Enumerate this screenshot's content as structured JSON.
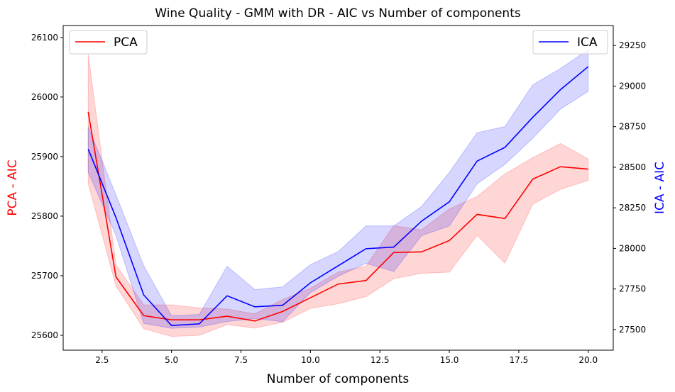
{
  "chart_data": {
    "type": "line",
    "title": "Wine Quality - GMM with DR - AIC vs Number of components",
    "xlabel": "Number of components",
    "ylabel_left": "PCA - AIC",
    "ylabel_right": "ICA - AIC",
    "xlim": [
      1.1,
      20.9
    ],
    "xticks": [
      2.5,
      5.0,
      7.5,
      10.0,
      12.5,
      15.0,
      17.5,
      20.0
    ],
    "xtick_labels": [
      "2.5",
      "5.0",
      "7.5",
      "10.0",
      "12.5",
      "15.0",
      "17.5",
      "20.0"
    ],
    "ylim_left": [
      25575,
      26120
    ],
    "yticks_left": [
      25600,
      25700,
      25800,
      25900,
      26000,
      26100
    ],
    "ytick_labels_left": [
      "25600",
      "25700",
      "25800",
      "25900",
      "26000",
      "26100"
    ],
    "ylim_right": [
      27373,
      29373
    ],
    "yticks_right": [
      27500,
      27750,
      28000,
      28250,
      28500,
      28750,
      29000,
      29250
    ],
    "ytick_labels_right": [
      "27500",
      "27750",
      "28000",
      "28250",
      "28500",
      "28750",
      "29000",
      "29250"
    ],
    "grid": false,
    "x": [
      2,
      3,
      4,
      5,
      6,
      7,
      8,
      9,
      10,
      11,
      12,
      13,
      14,
      15,
      16,
      17,
      18,
      19,
      20
    ],
    "series": [
      {
        "name": "PCA",
        "axis": "left",
        "color": "#ff0000",
        "legend_position": "upper-left",
        "values": [
          25975,
          25698,
          25633,
          25626,
          25626,
          25632,
          25624,
          25640,
          25663,
          25686,
          25692,
          25739,
          25740,
          25759,
          25803,
          25796,
          25862,
          25883,
          25879
        ],
        "lower": [
          25855,
          25683,
          25611,
          25598,
          25600,
          25618,
          25612,
          25622,
          25645,
          25653,
          25665,
          25695,
          25704,
          25706,
          25768,
          25721,
          25820,
          25845,
          25860
        ],
        "upper": [
          26072,
          25718,
          25651,
          25651,
          25646,
          25644,
          25636,
          25660,
          25679,
          25706,
          25716,
          25784,
          25777,
          25812,
          25833,
          25871,
          25898,
          25922,
          25896
        ]
      },
      {
        "name": "ICA",
        "axis": "right",
        "color": "#0000ff",
        "legend_position": "upper-right",
        "values": [
          28612,
          28190,
          27713,
          27525,
          27535,
          27708,
          27640,
          27650,
          27788,
          27893,
          27998,
          28008,
          28168,
          28287,
          28538,
          28622,
          28807,
          28978,
          29120
        ],
        "lower": [
          28470,
          28080,
          27538,
          27508,
          27515,
          27550,
          27568,
          27548,
          27728,
          27828,
          27908,
          27858,
          28078,
          28138,
          28398,
          28518,
          28678,
          28858,
          28968
        ],
        "upper": [
          28750,
          28330,
          27893,
          27585,
          27593,
          27890,
          27746,
          27763,
          27900,
          27980,
          28138,
          28138,
          28258,
          28468,
          28713,
          28750,
          29007,
          29108,
          29225
        ]
      }
    ]
  }
}
